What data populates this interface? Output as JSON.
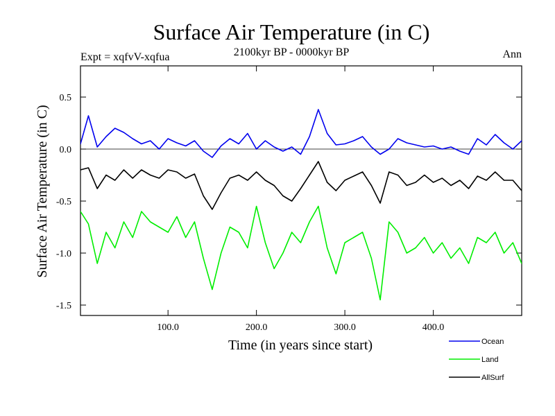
{
  "chart_data": {
    "type": "line",
    "title": "Surface Air Temperature (in C)",
    "subtitle": "2100kyr BP - 0000kyr BP",
    "left_label": "Expt = xqfvV-xqfua",
    "right_label": "Ann",
    "xlabel": "Time (in years since start)",
    "ylabel": "Surface Air Temperature (in C)",
    "xlim": [
      1,
      500
    ],
    "ylim": [
      -1.6,
      0.8
    ],
    "x_ticks": [
      {
        "value": 100,
        "label": "100.0"
      },
      {
        "value": 200,
        "label": "200.0"
      },
      {
        "value": 300,
        "label": "300.0"
      },
      {
        "value": 400,
        "label": "400.0"
      }
    ],
    "y_ticks": [
      {
        "value": 0.5,
        "label": "0.5"
      },
      {
        "value": 0.0,
        "label": "0.0"
      },
      {
        "value": -0.5,
        "label": "-0.5"
      },
      {
        "value": -1.0,
        "label": "-1.0"
      },
      {
        "value": -1.5,
        "label": "-1.5"
      }
    ],
    "zero_line": 0,
    "x": [
      1,
      10,
      20,
      30,
      40,
      50,
      60,
      70,
      80,
      90,
      100,
      110,
      120,
      130,
      140,
      150,
      160,
      170,
      180,
      190,
      200,
      210,
      220,
      230,
      240,
      250,
      260,
      270,
      280,
      290,
      300,
      310,
      320,
      330,
      340,
      350,
      360,
      370,
      380,
      390,
      400,
      410,
      420,
      430,
      440,
      450,
      460,
      470,
      480,
      490,
      500
    ],
    "series": [
      {
        "name": "Ocean",
        "color": "#0000ee",
        "values": [
          0.05,
          0.32,
          0.02,
          0.12,
          0.2,
          0.16,
          0.1,
          0.05,
          0.08,
          0.0,
          0.1,
          0.06,
          0.03,
          0.08,
          -0.02,
          -0.08,
          0.03,
          0.1,
          0.05,
          0.15,
          0.0,
          0.08,
          0.02,
          -0.02,
          0.02,
          -0.05,
          0.12,
          0.38,
          0.15,
          0.04,
          0.05,
          0.08,
          0.12,
          0.02,
          -0.05,
          0.0,
          0.1,
          0.06,
          0.04,
          0.02,
          0.03,
          0.0,
          0.02,
          -0.02,
          -0.05,
          0.1,
          0.04,
          0.14,
          0.06,
          0.0,
          0.08
        ]
      },
      {
        "name": "Land",
        "color": "#00ee00",
        "values": [
          -0.6,
          -0.72,
          -1.1,
          -0.8,
          -0.95,
          -0.7,
          -0.85,
          -0.6,
          -0.7,
          -0.75,
          -0.8,
          -0.65,
          -0.85,
          -0.7,
          -1.05,
          -1.35,
          -1.0,
          -0.75,
          -0.8,
          -0.95,
          -0.55,
          -0.9,
          -1.15,
          -1.0,
          -0.8,
          -0.9,
          -0.7,
          -0.55,
          -0.95,
          -1.2,
          -0.9,
          -0.85,
          -0.8,
          -1.05,
          -1.45,
          -0.7,
          -0.8,
          -1.0,
          -0.95,
          -0.85,
          -1.0,
          -0.9,
          -1.05,
          -0.95,
          -1.1,
          -0.85,
          -0.9,
          -0.8,
          -1.0,
          -0.9,
          -1.1
        ]
      },
      {
        "name": "AllSurf",
        "color": "#000000",
        "values": [
          -0.2,
          -0.18,
          -0.38,
          -0.25,
          -0.3,
          -0.2,
          -0.28,
          -0.2,
          -0.25,
          -0.28,
          -0.2,
          -0.22,
          -0.28,
          -0.24,
          -0.45,
          -0.58,
          -0.42,
          -0.28,
          -0.25,
          -0.3,
          -0.22,
          -0.3,
          -0.35,
          -0.45,
          -0.5,
          -0.38,
          -0.25,
          -0.12,
          -0.32,
          -0.4,
          -0.3,
          -0.26,
          -0.22,
          -0.35,
          -0.52,
          -0.22,
          -0.25,
          -0.35,
          -0.32,
          -0.25,
          -0.32,
          -0.28,
          -0.35,
          -0.3,
          -0.38,
          -0.26,
          -0.3,
          -0.22,
          -0.3,
          -0.3,
          -0.4
        ]
      }
    ],
    "legend": {
      "position": "bottom-right",
      "entries": [
        "Ocean",
        "Land",
        "AllSurf"
      ]
    }
  }
}
